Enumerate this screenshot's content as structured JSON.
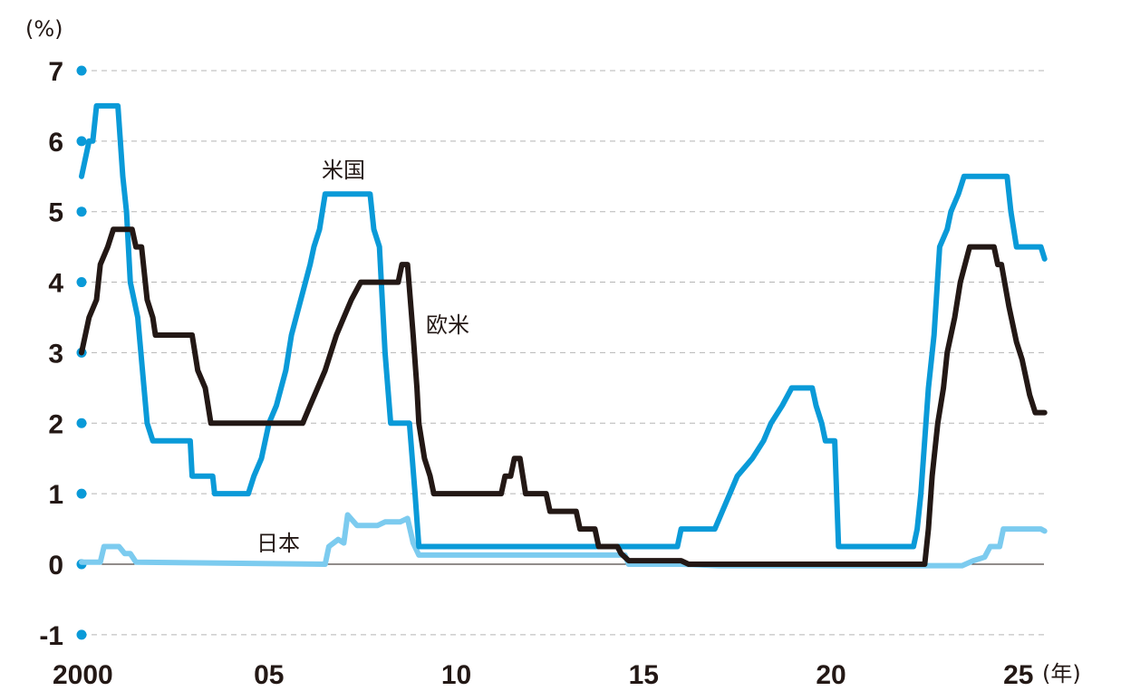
{
  "chart_data": {
    "type": "line",
    "title": "",
    "ylabel": "(%)",
    "xlabel": "(年)",
    "ylim": [
      -1,
      7
    ],
    "xlim": [
      2000,
      2025.7
    ],
    "yticks": [
      "-1",
      "0",
      "1",
      "2",
      "3",
      "4",
      "5",
      "6",
      "7"
    ],
    "yticks_values": [
      -1,
      0,
      1,
      2,
      3,
      4,
      5,
      6,
      7
    ],
    "xticks": [
      "2000",
      "05",
      "10",
      "15",
      "20",
      "25"
    ],
    "xticks_values": [
      2000,
      2005,
      2010,
      2015,
      2020,
      2025
    ],
    "grid": true,
    "colors": {
      "us": "#0a9ad8",
      "eu": "#231815",
      "jp": "#7ccbef",
      "grid": "#b5b5b5",
      "dot": "#0a9ad8"
    },
    "series": [
      {
        "name": "米国",
        "color": "#0a9ad8",
        "points": [
          [
            2000.0,
            5.5
          ],
          [
            2000.2,
            6.0
          ],
          [
            2000.3,
            6.0
          ],
          [
            2000.4,
            6.5
          ],
          [
            2000.97,
            6.5
          ],
          [
            2001.1,
            5.5
          ],
          [
            2001.2,
            5.0
          ],
          [
            2001.3,
            4.0
          ],
          [
            2001.5,
            3.5
          ],
          [
            2001.75,
            2.0
          ],
          [
            2001.9,
            1.75
          ],
          [
            2002.9,
            1.75
          ],
          [
            2002.95,
            1.25
          ],
          [
            2003.5,
            1.25
          ],
          [
            2003.55,
            1.0
          ],
          [
            2004.45,
            1.0
          ],
          [
            2004.6,
            1.25
          ],
          [
            2004.8,
            1.5
          ],
          [
            2005.0,
            2.0
          ],
          [
            2005.2,
            2.25
          ],
          [
            2005.45,
            2.75
          ],
          [
            2005.6,
            3.25
          ],
          [
            2005.85,
            3.75
          ],
          [
            2006.1,
            4.25
          ],
          [
            2006.2,
            4.5
          ],
          [
            2006.35,
            4.75
          ],
          [
            2006.5,
            5.25
          ],
          [
            2007.7,
            5.25
          ],
          [
            2007.8,
            4.75
          ],
          [
            2007.95,
            4.5
          ],
          [
            2008.1,
            3.0
          ],
          [
            2008.25,
            2.0
          ],
          [
            2008.75,
            2.0
          ],
          [
            2008.9,
            1.0
          ],
          [
            2009.0,
            0.25
          ],
          [
            2015.9,
            0.25
          ],
          [
            2016.0,
            0.5
          ],
          [
            2016.9,
            0.5
          ],
          [
            2017.1,
            0.75
          ],
          [
            2017.3,
            1.0
          ],
          [
            2017.5,
            1.25
          ],
          [
            2017.9,
            1.5
          ],
          [
            2018.2,
            1.75
          ],
          [
            2018.4,
            2.0
          ],
          [
            2018.7,
            2.25
          ],
          [
            2018.95,
            2.5
          ],
          [
            2019.5,
            2.5
          ],
          [
            2019.6,
            2.25
          ],
          [
            2019.75,
            2.0
          ],
          [
            2019.85,
            1.75
          ],
          [
            2020.1,
            1.75
          ],
          [
            2020.2,
            0.25
          ],
          [
            2022.2,
            0.25
          ],
          [
            2022.3,
            0.5
          ],
          [
            2022.4,
            1.0
          ],
          [
            2022.6,
            2.5
          ],
          [
            2022.75,
            3.25
          ],
          [
            2022.9,
            4.5
          ],
          [
            2023.1,
            4.75
          ],
          [
            2023.2,
            5.0
          ],
          [
            2023.4,
            5.25
          ],
          [
            2023.55,
            5.5
          ],
          [
            2024.7,
            5.5
          ],
          [
            2024.8,
            5.0
          ],
          [
            2024.95,
            4.5
          ],
          [
            2025.6,
            4.5
          ],
          [
            2025.7,
            4.33
          ]
        ]
      },
      {
        "name": "欧米",
        "color": "#231815",
        "points": [
          [
            2000.0,
            3.0
          ],
          [
            2000.2,
            3.5
          ],
          [
            2000.4,
            3.75
          ],
          [
            2000.5,
            4.25
          ],
          [
            2000.7,
            4.5
          ],
          [
            2000.85,
            4.75
          ],
          [
            2001.35,
            4.75
          ],
          [
            2001.45,
            4.5
          ],
          [
            2001.6,
            4.5
          ],
          [
            2001.75,
            3.75
          ],
          [
            2001.9,
            3.5
          ],
          [
            2001.97,
            3.25
          ],
          [
            2002.95,
            3.25
          ],
          [
            2003.1,
            2.75
          ],
          [
            2003.3,
            2.5
          ],
          [
            2003.45,
            2.0
          ],
          [
            2005.9,
            2.0
          ],
          [
            2006.1,
            2.25
          ],
          [
            2006.3,
            2.5
          ],
          [
            2006.5,
            2.75
          ],
          [
            2006.65,
            3.0
          ],
          [
            2006.8,
            3.25
          ],
          [
            2007.0,
            3.5
          ],
          [
            2007.2,
            3.75
          ],
          [
            2007.45,
            4.0
          ],
          [
            2008.45,
            4.0
          ],
          [
            2008.55,
            4.25
          ],
          [
            2008.7,
            4.25
          ],
          [
            2008.85,
            3.25
          ],
          [
            2008.95,
            2.5
          ],
          [
            2009.0,
            2.0
          ],
          [
            2009.15,
            1.5
          ],
          [
            2009.3,
            1.25
          ],
          [
            2009.4,
            1.0
          ],
          [
            2011.2,
            1.0
          ],
          [
            2011.3,
            1.25
          ],
          [
            2011.45,
            1.25
          ],
          [
            2011.55,
            1.5
          ],
          [
            2011.7,
            1.5
          ],
          [
            2011.85,
            1.0
          ],
          [
            2012.4,
            1.0
          ],
          [
            2012.5,
            0.75
          ],
          [
            2013.2,
            0.75
          ],
          [
            2013.3,
            0.5
          ],
          [
            2013.7,
            0.5
          ],
          [
            2013.8,
            0.25
          ],
          [
            2014.3,
            0.25
          ],
          [
            2014.4,
            0.15
          ],
          [
            2014.6,
            0.05
          ],
          [
            2016.0,
            0.05
          ],
          [
            2016.2,
            0.0
          ],
          [
            2022.5,
            0.0
          ],
          [
            2022.6,
            0.5
          ],
          [
            2022.7,
            1.25
          ],
          [
            2022.85,
            2.0
          ],
          [
            2023.0,
            2.5
          ],
          [
            2023.1,
            3.0
          ],
          [
            2023.3,
            3.5
          ],
          [
            2023.45,
            4.0
          ],
          [
            2023.7,
            4.5
          ],
          [
            2024.35,
            4.5
          ],
          [
            2024.45,
            4.25
          ],
          [
            2024.55,
            4.25
          ],
          [
            2024.75,
            3.65
          ],
          [
            2024.95,
            3.15
          ],
          [
            2025.1,
            2.9
          ],
          [
            2025.3,
            2.4
          ],
          [
            2025.45,
            2.15
          ],
          [
            2025.7,
            2.15
          ]
        ]
      },
      {
        "name": "日本",
        "color": "#7ccbef",
        "points": [
          [
            2000.0,
            0.03
          ],
          [
            2000.5,
            0.03
          ],
          [
            2000.6,
            0.25
          ],
          [
            2001.0,
            0.25
          ],
          [
            2001.15,
            0.15
          ],
          [
            2001.3,
            0.15
          ],
          [
            2001.45,
            0.03
          ],
          [
            2006.5,
            0.0
          ],
          [
            2006.6,
            0.25
          ],
          [
            2006.85,
            0.35
          ],
          [
            2007.0,
            0.3
          ],
          [
            2007.1,
            0.7
          ],
          [
            2007.35,
            0.55
          ],
          [
            2007.9,
            0.55
          ],
          [
            2008.1,
            0.6
          ],
          [
            2008.5,
            0.6
          ],
          [
            2008.7,
            0.65
          ],
          [
            2008.85,
            0.3
          ],
          [
            2009.0,
            0.13
          ],
          [
            2014.5,
            0.13
          ],
          [
            2014.6,
            0.0
          ],
          [
            2016.0,
            0.0
          ],
          [
            2017.0,
            -0.02
          ],
          [
            2023.5,
            -0.02
          ],
          [
            2023.8,
            0.05
          ],
          [
            2024.1,
            0.1
          ],
          [
            2024.25,
            0.25
          ],
          [
            2024.5,
            0.25
          ],
          [
            2024.6,
            0.5
          ],
          [
            2025.6,
            0.5
          ],
          [
            2025.7,
            0.47
          ]
        ]
      }
    ],
    "annotations": {
      "us": "米国",
      "eu": "欧米",
      "jp": "日本"
    }
  }
}
